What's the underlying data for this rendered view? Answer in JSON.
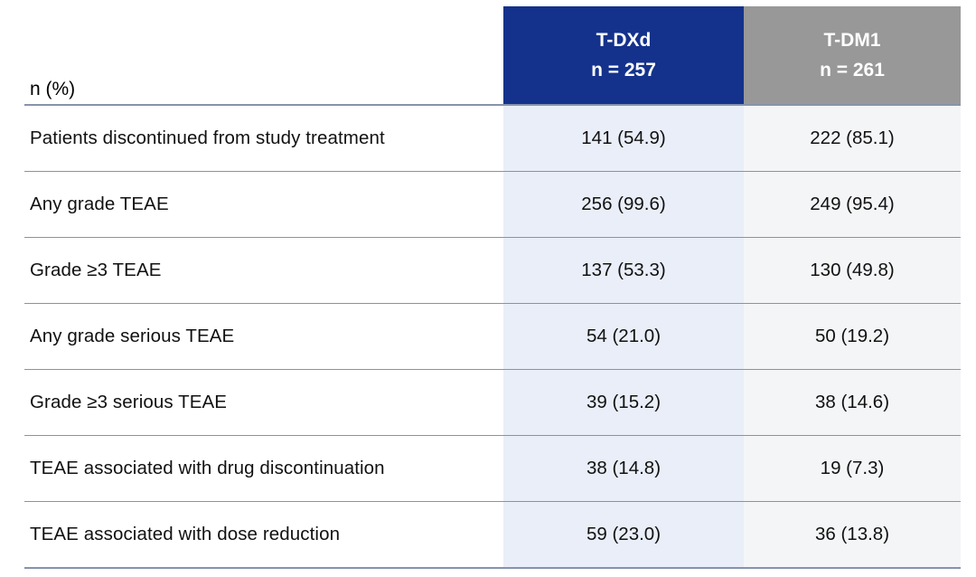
{
  "table": {
    "corner_label": "n (%)",
    "columns": [
      {
        "id": "tdxd",
        "line1": "T-DXd",
        "line2": "n = 257"
      },
      {
        "id": "tdm1",
        "line1": "T-DM1",
        "line2": "n = 261"
      }
    ],
    "rows": [
      {
        "label": "Patients discontinued from study treatment",
        "tdxd": "141 (54.9)",
        "tdm1": "222 (85.1)"
      },
      {
        "label": "Any grade TEAE",
        "tdxd": "256 (99.6)",
        "tdm1": "249 (95.4)"
      },
      {
        "label": "Grade ≥3 TEAE",
        "tdxd": "137 (53.3)",
        "tdm1": "130 (49.8)"
      },
      {
        "label": "Any grade serious TEAE",
        "tdxd": "54 (21.0)",
        "tdm1": "50 (19.2)"
      },
      {
        "label": "Grade ≥3 serious TEAE",
        "tdxd": "39 (15.2)",
        "tdm1": "38 (14.6)"
      },
      {
        "label": "TEAE associated with drug discontinuation",
        "tdxd": "38 (14.8)",
        "tdm1": "19 (7.3)"
      },
      {
        "label": "TEAE associated with dose reduction",
        "tdxd": "59 (23.0)",
        "tdm1": "36 (13.8)"
      }
    ],
    "colors": {
      "tdxd_header_bg": "#14328C",
      "tdm1_header_bg": "#989898",
      "tdxd_column_bg": "#E9EEF8",
      "tdm1_column_bg": "#F4F5F7",
      "rule_line": "#8693ab",
      "header_text": "#ffffff",
      "body_text": "#111111"
    }
  },
  "chart_data": {
    "type": "table",
    "columns": [
      "n (%)",
      "T-DXd n = 257",
      "T-DM1 n = 261"
    ],
    "rows": [
      [
        "Patients discontinued from study treatment",
        "141 (54.9)",
        "222 (85.1)"
      ],
      [
        "Any grade TEAE",
        "256 (99.6)",
        "249 (95.4)"
      ],
      [
        "Grade ≥3 TEAE",
        "137 (53.3)",
        "130 (49.8)"
      ],
      [
        "Any grade serious TEAE",
        "54 (21.0)",
        "50 (19.2)"
      ],
      [
        "Grade ≥3 serious TEAE",
        "39 (15.2)",
        "38 (14.6)"
      ],
      [
        "TEAE associated with drug discontinuation",
        "38 (14.8)",
        "19 (7.3)"
      ],
      [
        "TEAE associated with dose reduction",
        "59 (23.0)",
        "36 (13.8)"
      ]
    ]
  }
}
